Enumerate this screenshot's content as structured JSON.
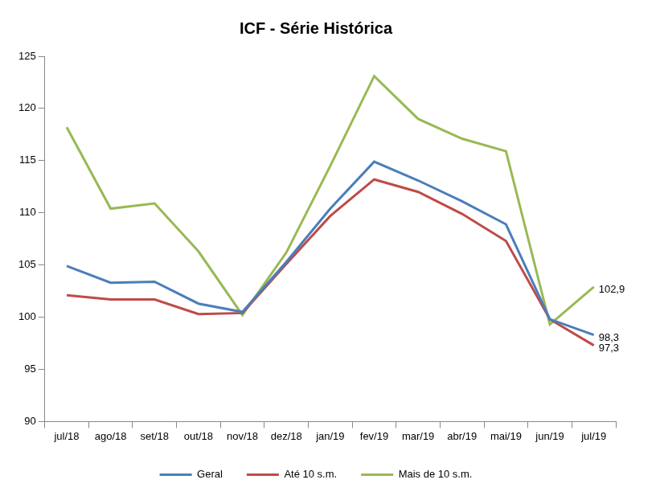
{
  "chart_data": {
    "type": "line",
    "title": "ICF - Série Histórica",
    "categories": [
      "jul/18",
      "ago/18",
      "set/18",
      "out/18",
      "nov/18",
      "dez/18",
      "jan/19",
      "fev/19",
      "mar/19",
      "abr/19",
      "mai/19",
      "jun/19",
      "jul/19"
    ],
    "series": [
      {
        "name": "Geral",
        "color": "#4a7ebb",
        "values": [
          104.9,
          103.3,
          103.4,
          101.3,
          100.5,
          105.3,
          110.4,
          114.9,
          113.1,
          111.1,
          108.9,
          99.8,
          98.3
        ],
        "value_labels": [
          null,
          null,
          null,
          null,
          null,
          null,
          null,
          null,
          null,
          null,
          null,
          null,
          "98,3"
        ]
      },
      {
        "name": "Até 10 s.m.",
        "color": "#be4b48",
        "values": [
          102.1,
          101.7,
          101.7,
          100.3,
          100.4,
          105.1,
          109.7,
          113.2,
          112.0,
          109.9,
          107.3,
          99.8,
          97.3
        ],
        "value_labels": [
          null,
          null,
          null,
          null,
          null,
          null,
          null,
          null,
          null,
          null,
          null,
          null,
          "97,3"
        ]
      },
      {
        "name": "Mais de 10 s.m.",
        "color": "#98b954",
        "values": [
          118.2,
          110.4,
          110.9,
          106.3,
          100.2,
          106.2,
          114.5,
          123.1,
          119.0,
          117.1,
          115.9,
          99.3,
          102.9
        ],
        "value_labels": [
          null,
          null,
          null,
          null,
          null,
          null,
          null,
          null,
          null,
          null,
          null,
          null,
          "102,9"
        ]
      }
    ],
    "ylim": [
      90,
      125
    ],
    "yticks": [
      90,
      95,
      100,
      105,
      110,
      115,
      120,
      125
    ],
    "grid": false,
    "legend": "bottom"
  }
}
